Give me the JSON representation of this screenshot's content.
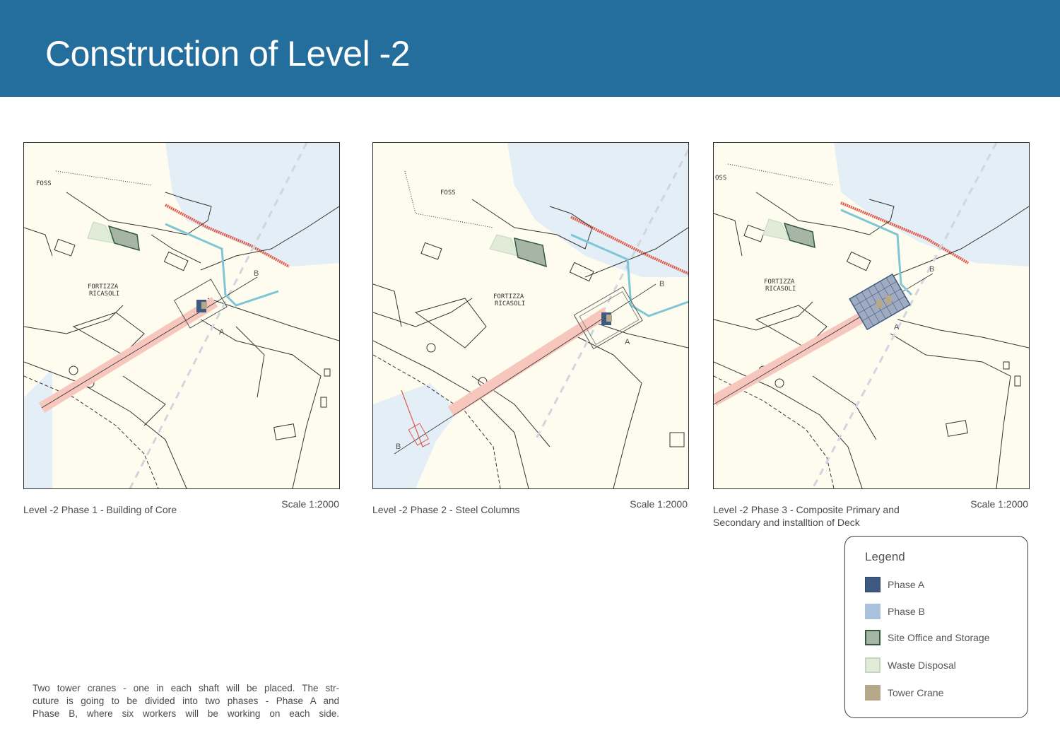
{
  "title": "Construction of Level -2",
  "panels": [
    {
      "caption": "Level -2  Phase 1 - Building of Core",
      "scale": "Scale 1:2000"
    },
    {
      "caption": "Level -2  Phase 2  - Steel Columns",
      "scale": "Scale 1:2000"
    },
    {
      "caption": "Level -2  Phase 3  - Composite Primary and Secondary and installtion of Deck",
      "scale": "Scale 1:2000"
    }
  ],
  "map_labels": {
    "foss": [
      "FOSS",
      "FOSS",
      "OSS"
    ],
    "fort_line1": "FORTIZZA",
    "fort_line2": "RICASOLI",
    "section_a": "A",
    "section_b": "B"
  },
  "legend": {
    "title": "Legend",
    "items": [
      {
        "label": "Phase A",
        "color": "#3e5a80",
        "border": "#2e4566"
      },
      {
        "label": "Phase B",
        "color": "#a9c1dc",
        "border": "#a9c1dc"
      },
      {
        "label": "Site Office and Storage",
        "color": "#a7b5a6",
        "border": "#2f5a3c"
      },
      {
        "label": "Waste Disposal",
        "color": "#e0ebd8",
        "border": "#c5d8bd"
      },
      {
        "label": "Tower Crane",
        "color": "#b6a888",
        "border": "#b6a888"
      }
    ]
  },
  "note": {
    "line1": "Two tower cranes - one in each shaft will be placed. The str-",
    "line2": "cuture is going to be divided into two phases - Phase A and",
    "line3": "Phase B, where six workers will be working on each side."
  },
  "colors": {
    "header": "#246e9d",
    "water": "#e4eef7",
    "land": "#fdfcef",
    "red_edge": "#e05a4a",
    "cyan_path": "#7fc6d6",
    "pink_band": "#f7c7bd"
  }
}
